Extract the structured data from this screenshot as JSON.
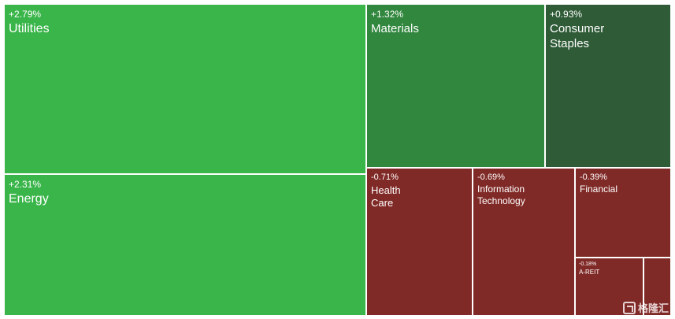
{
  "chart_data": {
    "type": "treemap",
    "title": "",
    "tiles": [
      {
        "name": "Utilities",
        "change": "+2.79%",
        "value": 2.79,
        "color": "#3ab54a",
        "size_class": "xl"
      },
      {
        "name": "Energy",
        "change": "+2.31%",
        "value": 2.31,
        "color": "#3ab54a",
        "size_class": "xl"
      },
      {
        "name": "Materials",
        "change": "+1.32%",
        "value": 1.32,
        "color": "#31873e",
        "size_class": "l"
      },
      {
        "name": "Consumer\nStaples",
        "change": "+0.93%",
        "value": 0.93,
        "color": "#2f5b37",
        "size_class": "l"
      },
      {
        "name": "Health\nCare",
        "change": "-0.71%",
        "value": -0.71,
        "color": "#802a27",
        "size_class": "m"
      },
      {
        "name": "Information\nTechnology",
        "change": "-0.69%",
        "value": -0.69,
        "color": "#802a27",
        "size_class": "s"
      },
      {
        "name": "Financial",
        "change": "-0.39%",
        "value": -0.39,
        "color": "#802a27",
        "size_class": "s"
      },
      {
        "name": "A-REIT",
        "change": "-0.18%",
        "value": -0.18,
        "color": "#802a27",
        "size_class": "xs"
      },
      {
        "name": "",
        "change": "",
        "value": null,
        "color": "#802a27",
        "size_class": "xxs"
      }
    ]
  },
  "watermark": {
    "text": "格隆汇",
    "icon": "glh-logo-icon"
  }
}
